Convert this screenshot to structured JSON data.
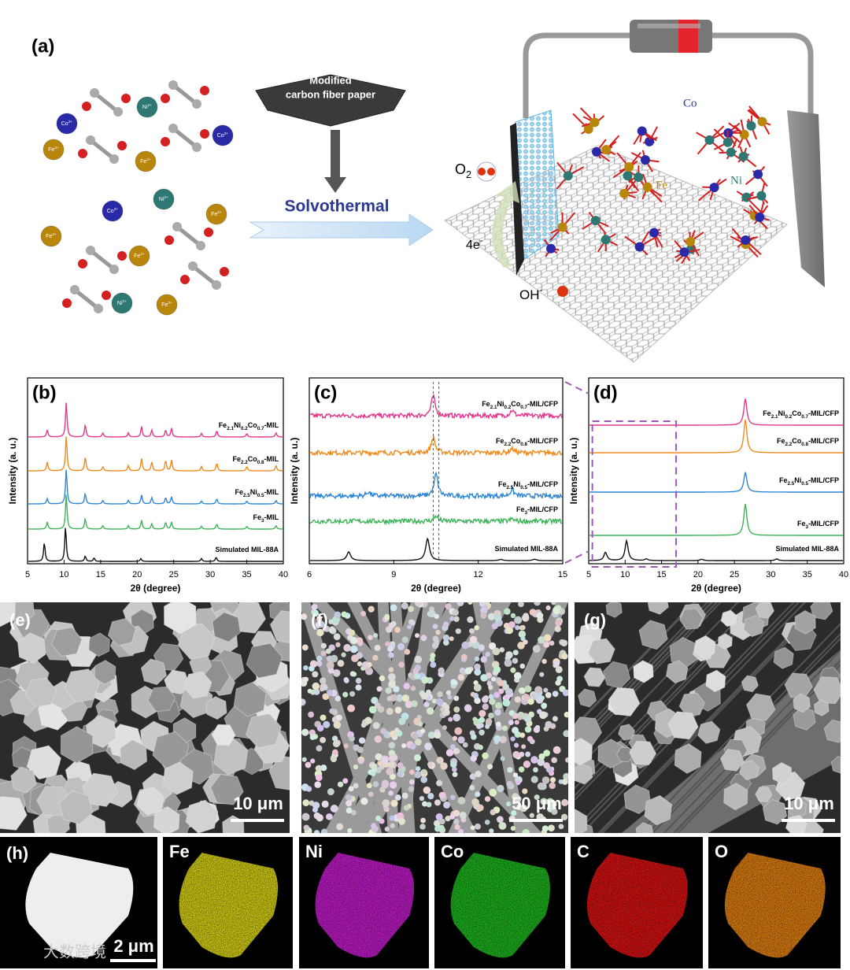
{
  "figure": {
    "a": {
      "label": "(a)",
      "paper": [
        "Modified",
        "carbon fiber paper"
      ],
      "process": "Solvothermal",
      "ions": {
        "co": "Co2+",
        "ni": "Ni2+",
        "fe": "Fe3+"
      },
      "o2": "O2",
      "electrons": "4e-",
      "oh": "OH-",
      "co": "Co",
      "fe": "Fe",
      "ni": "Ni"
    },
    "sem": [
      {
        "label": "(e)",
        "scale": "10 μm"
      },
      {
        "label": "(f)",
        "scale": "50 μm"
      },
      {
        "label": "(g)",
        "scale": "10 μm"
      }
    ],
    "eds": {
      "label": "(h)",
      "scale": "2 μm",
      "maps": [
        {
          "element": "Fe",
          "color": "#e6e01a"
        },
        {
          "element": "Ni",
          "color": "#d020d8"
        },
        {
          "element": "Co",
          "color": "#22c322"
        },
        {
          "element": "C",
          "color": "#e81818"
        },
        {
          "element": "O",
          "color": "#f08a18"
        }
      ]
    },
    "watermark": "大数跨境"
  },
  "chart_data": [
    {
      "type": "line",
      "label": "(b)",
      "xlabel": "2θ (degree)",
      "ylabel": "Intensity (a. u.)",
      "xlim": [
        5,
        40
      ],
      "xticks": [
        5,
        10,
        15,
        20,
        25,
        30,
        35,
        40
      ],
      "series": [
        {
          "name": "Fe2.1Ni0.2Co0.7-MIL",
          "color": "#e6378c",
          "x": [
            7.7,
            10.3,
            12.9,
            15.3,
            18.8,
            20.6,
            22,
            23.9,
            24.7,
            28.8,
            30.9,
            35,
            39
          ],
          "values": [
            0.2,
            1,
            0.35,
            0.12,
            0.12,
            0.3,
            0.2,
            0.2,
            0.25,
            0.1,
            0.18,
            0.1,
            0.12
          ]
        },
        {
          "name": "Fe2.2Co0.8-MIL",
          "color": "#f08a1c",
          "x": [
            7.7,
            10.3,
            12.9,
            15.3,
            18.8,
            20.6,
            22,
            23.9,
            24.7,
            28.8,
            30.9,
            35,
            39
          ],
          "values": [
            0.25,
            1,
            0.4,
            0.12,
            0.15,
            0.35,
            0.25,
            0.3,
            0.3,
            0.12,
            0.22,
            0.12,
            0.15
          ]
        },
        {
          "name": "Fe2.5Ni0.5-MIL",
          "color": "#2d86d6",
          "x": [
            7.7,
            10.3,
            12.9,
            15.3,
            18.8,
            20.6,
            22,
            23.9,
            24.7,
            28.8,
            30.9,
            35,
            39
          ],
          "values": [
            0.15,
            1,
            0.3,
            0.1,
            0.1,
            0.25,
            0.18,
            0.18,
            0.2,
            0.08,
            0.15,
            0.08,
            0.1
          ]
        },
        {
          "name": "Fe3-MIL",
          "color": "#3fb35a",
          "x": [
            7.7,
            10.3,
            12.9,
            15.3,
            18.8,
            20.6,
            22,
            23.9,
            24.7,
            28.8,
            30.9,
            35,
            39
          ],
          "values": [
            0.2,
            1,
            0.3,
            0.1,
            0.1,
            0.25,
            0.15,
            0.2,
            0.2,
            0.08,
            0.15,
            0.08,
            0.1
          ]
        },
        {
          "name": "Simulated MIL-88A",
          "color": "#111111",
          "x": [
            7.3,
            10.2,
            12.9,
            14.1,
            20.5,
            28.8,
            30.8
          ],
          "values": [
            0.55,
            1,
            0.15,
            0.1,
            0.08,
            0.08,
            0.12
          ]
        }
      ]
    },
    {
      "type": "line",
      "label": "(c)",
      "xlabel": "2θ (degree)",
      "ylabel": "Intensity (a. u.)",
      "xlim": [
        6,
        15
      ],
      "xticks": [
        6,
        9,
        12,
        15
      ],
      "series": [
        {
          "name": "Fe2.1Ni0.2Co0.7-MIL/CFP",
          "color": "#e6378c",
          "x": [
            10.4,
            13.2
          ],
          "values": [
            0.9,
            0.25
          ]
        },
        {
          "name": "Fe2.2Co0.8-MIL/CFP",
          "color": "#f08a1c",
          "x": [
            10.4,
            13.2
          ],
          "values": [
            0.7,
            0.2
          ]
        },
        {
          "name": "Fe2.5Ni0.5-MIL/CFP",
          "color": "#2d86d6",
          "x": [
            8.1,
            10.5,
            13.2
          ],
          "values": [
            0.2,
            1,
            0.3
          ]
        },
        {
          "name": "Fe3-MIL/CFP",
          "color": "#3fb35a",
          "x": [
            10.5,
            13.2
          ],
          "values": [
            0.25,
            0.1
          ]
        },
        {
          "name": "Simulated MIL-88A",
          "color": "#111111",
          "x": [
            7.4,
            10.2,
            12.8,
            14
          ],
          "values": [
            0.4,
            1,
            0.05,
            0.06
          ]
        }
      ]
    },
    {
      "type": "line",
      "label": "(d)",
      "xlabel": "2θ (degree)",
      "ylabel": "Intensity (a. u.)",
      "xlim": [
        5,
        40
      ],
      "xticks": [
        5,
        10,
        15,
        20,
        25,
        30,
        35,
        40
      ],
      "series": [
        {
          "name": "Fe2.1Ni0.2Co0.7-MIL/CFP",
          "color": "#e6378c",
          "x": [
            26.5
          ],
          "values": [
            0.8
          ]
        },
        {
          "name": "Fe2.2Co0.8-MIL/CFP",
          "color": "#f08a1c",
          "x": [
            26.5
          ],
          "values": [
            1
          ]
        },
        {
          "name": "Fe2.5Ni0.5-MIL/CFP",
          "color": "#2d86d6",
          "x": [
            26.5
          ],
          "values": [
            0.6
          ]
        },
        {
          "name": "Fe3-MIL/CFP",
          "color": "#3fb35a",
          "x": [
            26.5
          ],
          "values": [
            0.95
          ]
        },
        {
          "name": "Simulated MIL-88A",
          "color": "#111111",
          "x": [
            7.3,
            10.2,
            12.9,
            20.5,
            30.8
          ],
          "values": [
            0.25,
            0.6,
            0.05,
            0.04,
            0.05
          ]
        }
      ]
    }
  ]
}
